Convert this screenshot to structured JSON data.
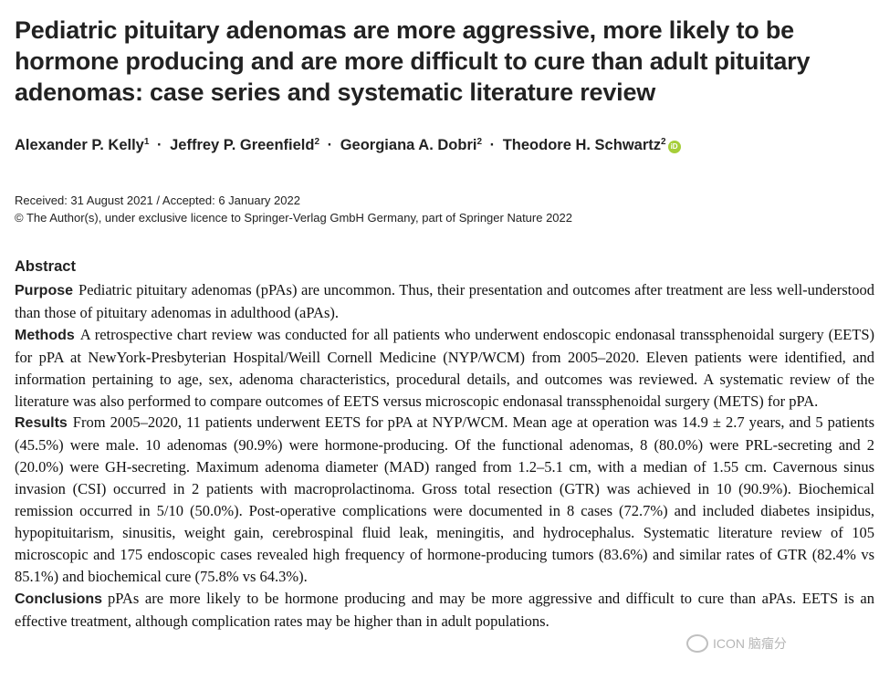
{
  "title": "Pediatric pituitary adenomas are more aggressive, more likely to be hormone producing and are more difficult to cure than adult pituitary adenomas: case series and systematic literature review",
  "authors": [
    {
      "name": "Alexander P. Kelly",
      "aff": "1"
    },
    {
      "name": "Jeffrey P. Greenfield",
      "aff": "2"
    },
    {
      "name": "Georgiana A. Dobri",
      "aff": "2"
    },
    {
      "name": "Theodore H. Schwartz",
      "aff": "2"
    }
  ],
  "author_separator": "·",
  "orcid_icon": "iD",
  "received_line": "Received: 31 August 2021 / Accepted: 6 January 2022",
  "copyright_line": "© The Author(s), under exclusive licence to Springer-Verlag GmbH Germany, part of Springer Nature 2022",
  "abstract": {
    "heading": "Abstract",
    "sections": [
      {
        "label": "Purpose",
        "text": "Pediatric pituitary adenomas (pPAs) are uncommon. Thus, their presentation and outcomes after treatment are less well-understood than those of pituitary adenomas in adulthood (aPAs)."
      },
      {
        "label": "Methods",
        "text": "A retrospective chart review was conducted for all patients who underwent endoscopic endonasal transsphenoidal surgery (EETS) for pPA at NewYork-Presbyterian Hospital/Weill Cornell Medicine (NYP/WCM) from 2005–2020. Eleven patients were identified, and information pertaining to age, sex, adenoma characteristics, procedural details, and outcomes was reviewed. A systematic review of the literature was also performed to compare outcomes of EETS versus microscopic endonasal transsphenoidal surgery (METS) for pPA."
      },
      {
        "label": "Results",
        "text": "From 2005–2020, 11 patients underwent EETS for pPA at NYP/WCM. Mean age at operation was 14.9 ± 2.7 years, and 5 patients (45.5%) were male. 10 adenomas (90.9%) were hormone-producing. Of the functional adenomas, 8 (80.0%) were PRL-secreting and 2 (20.0%) were GH-secreting. Maximum adenoma diameter (MAD) ranged from 1.2–5.1 cm, with a median of 1.55 cm. Cavernous sinus invasion (CSI) occurred in 2 patients with macroprolactinoma. Gross total resection (GTR) was achieved in 10 (90.9%). Biochemical remission occurred in 5/10 (50.0%). Post-operative complications were documented in 8 cases (72.7%) and included diabetes insipidus, hypopituitarism, sinusitis, weight gain, cerebrospinal fluid leak, meningitis, and hydrocephalus. Systematic literature review of 105 microscopic and 175 endoscopic cases revealed high frequency of hormone-producing tumors (83.6%) and similar rates of GTR (82.4% vs 85.1%) and biochemical cure (75.8% vs 64.3%)."
      },
      {
        "label": "Conclusions",
        "text": "pPAs are more likely to be hormone producing and may be more aggressive and difficult to cure than aPAs. EETS is an effective treatment, although complication rates may be higher than in adult populations."
      }
    ]
  },
  "watermark": "ICON 脑瘤分"
}
